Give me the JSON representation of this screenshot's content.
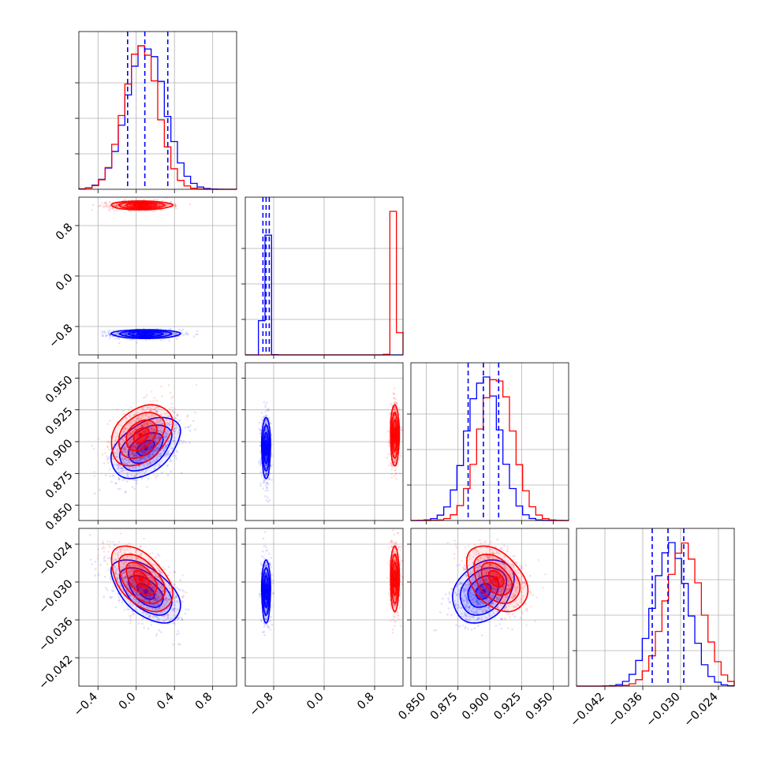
{
  "chart_data": {
    "type": "corner",
    "grid": true,
    "parameters": [
      {
        "range": [
          -0.6,
          1.05
        ],
        "ticks": [
          -0.4,
          0.0,
          0.4,
          0.8
        ],
        "tick_labels": [
          "−0.4",
          "0.0",
          "0.4",
          "0.8"
        ]
      },
      {
        "range": [
          -1.25,
          1.25
        ],
        "ticks": [
          -0.8,
          0.0,
          0.8
        ],
        "tick_labels": [
          "−0.8",
          "0.0",
          "0.8"
        ]
      },
      {
        "range": [
          0.838,
          0.962
        ],
        "ticks": [
          0.85,
          0.875,
          0.9,
          0.925,
          0.95
        ],
        "tick_labels": [
          "0.850",
          "0.875",
          "0.900",
          "0.925",
          "0.950"
        ]
      },
      {
        "range": [
          -0.0465,
          -0.0215
        ],
        "ticks": [
          -0.042,
          -0.036,
          -0.03,
          -0.024
        ],
        "tick_labels": [
          "−0.042",
          "−0.036",
          "−0.030",
          "−0.024"
        ]
      }
    ],
    "series": [
      {
        "color": "#0000ff",
        "mean": [
          0.1,
          -0.92,
          0.895,
          -0.0315
        ],
        "std": [
          0.18,
          0.035,
          0.012,
          0.0025
        ],
        "corr": {
          "2-0": 0.45,
          "3-0": -0.55,
          "3-2": 0.3
        },
        "quantiles": [
          [
            -0.09,
            0.09,
            0.33
          ],
          [
            -0.97,
            -0.92,
            -0.87
          ],
          [
            0.883,
            0.895,
            0.907
          ],
          [
            -0.0345,
            -0.032,
            -0.0295
          ]
        ]
      },
      {
        "color": "#ff0000",
        "mean": [
          0.05,
          1.12,
          0.905,
          -0.0295
        ],
        "std": [
          0.16,
          0.035,
          0.012,
          0.0026
        ],
        "corr": {
          "2-0": 0.35,
          "3-0": -0.5,
          "3-2": -0.4,
          "3-1": 0.0
        }
      }
    ]
  }
}
